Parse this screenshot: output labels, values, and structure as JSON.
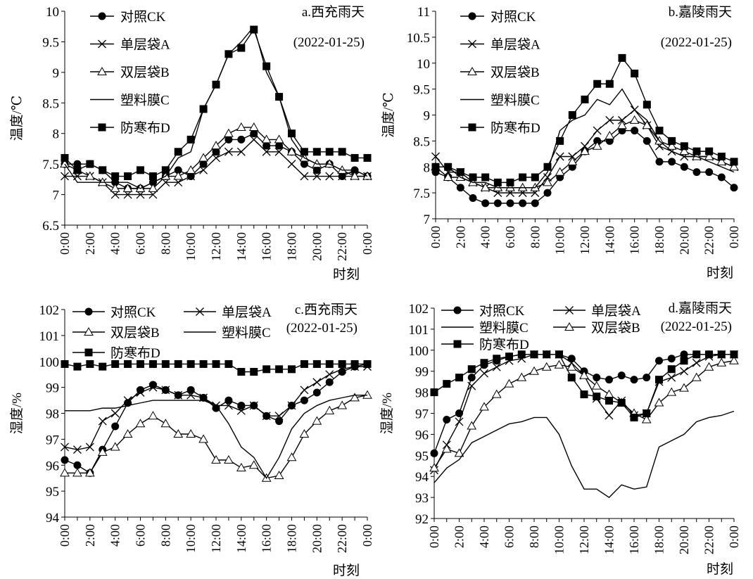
{
  "chart_data": [
    {
      "type": "line",
      "title": "a.西充雨天",
      "subtitle": "(2022-01-25)",
      "xlabel": "时刻",
      "ylabel": "温度/℃",
      "ylim": [
        6.5,
        10
      ],
      "y_ticks": [
        "6.5",
        "7",
        "7.5",
        "8",
        "8.5",
        "9",
        "9.5",
        "10"
      ],
      "x_ticks": [
        "0:00",
        "2:00",
        "4:00",
        "6:00",
        "8:00",
        "10:00",
        "12:00",
        "14:00",
        "16:00",
        "18:00",
        "20:00",
        "22:00",
        "0:00"
      ],
      "x_hours": [
        0,
        2,
        4,
        6,
        8,
        10,
        12,
        14,
        16,
        18,
        20,
        22,
        24
      ],
      "x": [
        0,
        1,
        2,
        3,
        4,
        5,
        6,
        7,
        8,
        9,
        10,
        11,
        12,
        13,
        14,
        15,
        16,
        17,
        18,
        19,
        20,
        21,
        22,
        23,
        24
      ],
      "grid": false,
      "legend_position": "top-left",
      "series": [
        {
          "name": "对照CK",
          "marker": "circle",
          "values": [
            7.5,
            7.5,
            7.5,
            7.4,
            7.2,
            7.1,
            7.1,
            7.2,
            7.3,
            7.4,
            7.3,
            7.5,
            7.7,
            7.9,
            7.9,
            8.0,
            7.8,
            7.8,
            7.7,
            7.5,
            7.4,
            7.5,
            7.3,
            7.4,
            7.3
          ]
        },
        {
          "name": "单层袋A",
          "marker": "cross",
          "values": [
            7.3,
            7.3,
            7.3,
            7.2,
            7.0,
            7.0,
            7.0,
            7.0,
            7.2,
            7.2,
            7.3,
            7.4,
            7.6,
            7.7,
            7.7,
            7.9,
            7.7,
            7.7,
            7.5,
            7.3,
            7.3,
            7.3,
            7.3,
            7.3,
            7.3
          ]
        },
        {
          "name": "双层袋B",
          "marker": "triangle",
          "values": [
            7.5,
            7.4,
            7.3,
            7.2,
            7.1,
            7.1,
            7.1,
            7.1,
            7.3,
            7.3,
            7.4,
            7.6,
            7.8,
            8.0,
            8.1,
            8.1,
            7.9,
            7.9,
            7.7,
            7.6,
            7.5,
            7.5,
            7.4,
            7.3,
            7.3
          ]
        },
        {
          "name": "塑料膜C",
          "marker": "none",
          "values": [
            7.5,
            7.2,
            7.2,
            7.2,
            7.2,
            7.2,
            7.1,
            7.2,
            7.3,
            7.6,
            7.7,
            8.4,
            8.8,
            9.3,
            9.5,
            9.75,
            9.0,
            8.6,
            7.9,
            7.6,
            7.5,
            7.5,
            7.4,
            7.4,
            7.3
          ]
        },
        {
          "name": "防寒布D",
          "marker": "square",
          "values": [
            7.6,
            7.4,
            7.5,
            7.4,
            7.3,
            7.3,
            7.4,
            7.3,
            7.4,
            7.7,
            7.9,
            8.4,
            8.8,
            9.3,
            9.4,
            9.7,
            9.1,
            8.6,
            8.0,
            7.7,
            7.7,
            7.7,
            7.7,
            7.6,
            7.6
          ]
        }
      ]
    },
    {
      "type": "line",
      "title": "b.嘉陵雨天",
      "subtitle": "(2022-01-25)",
      "xlabel": "时刻",
      "ylabel": "温度/℃",
      "ylim": [
        7,
        11
      ],
      "y_ticks": [
        "7",
        "7.5",
        "8",
        "8.5",
        "9",
        "9.5",
        "10",
        "10.5",
        "11"
      ],
      "x_ticks": [
        "0:00",
        "2:00",
        "4:00",
        "6:00",
        "8:00",
        "10:00",
        "12:00",
        "14:00",
        "16:00",
        "18:00",
        "20:00",
        "22:00",
        "0:00"
      ],
      "x_hours": [
        0,
        2,
        4,
        6,
        8,
        10,
        12,
        14,
        16,
        18,
        20,
        22,
        24
      ],
      "x": [
        0,
        1,
        2,
        3,
        4,
        5,
        6,
        7,
        8,
        9,
        10,
        11,
        12,
        13,
        14,
        15,
        16,
        17,
        18,
        19,
        20,
        21,
        22,
        23,
        24
      ],
      "grid": false,
      "legend_position": "top-left",
      "series": [
        {
          "name": "对照CK",
          "marker": "circle",
          "values": [
            7.9,
            7.8,
            7.6,
            7.4,
            7.3,
            7.3,
            7.3,
            7.3,
            7.3,
            7.5,
            7.8,
            8.0,
            8.3,
            8.5,
            8.5,
            8.7,
            8.7,
            8.5,
            8.1,
            8.1,
            8.0,
            7.9,
            7.9,
            7.8,
            7.6
          ]
        },
        {
          "name": "单层袋A",
          "marker": "cross",
          "values": [
            8.2,
            7.9,
            7.9,
            7.7,
            7.6,
            7.5,
            7.5,
            7.5,
            7.5,
            7.8,
            8.2,
            8.2,
            8.4,
            8.7,
            8.9,
            8.9,
            9.1,
            8.8,
            8.4,
            8.3,
            8.2,
            8.2,
            8.2,
            8.1,
            8.0
          ]
        },
        {
          "name": "双层袋B",
          "marker": "triangle",
          "values": [
            8.0,
            7.8,
            7.8,
            7.7,
            7.6,
            7.6,
            7.6,
            7.6,
            7.6,
            7.7,
            7.9,
            8.1,
            8.3,
            8.4,
            8.6,
            8.8,
            8.9,
            8.8,
            8.5,
            8.4,
            8.3,
            8.2,
            8.2,
            8.1,
            8.0
          ]
        },
        {
          "name": "塑料膜C",
          "marker": "none",
          "values": [
            8.0,
            8.0,
            7.8,
            7.7,
            7.7,
            7.6,
            7.6,
            7.6,
            7.6,
            7.9,
            8.7,
            8.9,
            9.0,
            9.3,
            9.2,
            9.5,
            9.1,
            8.9,
            8.5,
            8.3,
            8.2,
            8.2,
            8.1,
            8.0,
            7.9
          ]
        },
        {
          "name": "防寒布D",
          "marker": "square",
          "values": [
            8.0,
            8.0,
            7.9,
            7.8,
            7.8,
            7.7,
            7.7,
            7.8,
            7.8,
            8.0,
            8.5,
            9.0,
            9.3,
            9.6,
            9.6,
            10.1,
            9.8,
            9.2,
            8.7,
            8.5,
            8.4,
            8.3,
            8.3,
            8.2,
            8.1
          ]
        }
      ]
    },
    {
      "type": "line",
      "title": "c.西充雨天",
      "subtitle": "(2022-01-25)",
      "xlabel": "时刻",
      "ylabel": "湿度/%",
      "ylim": [
        94,
        102
      ],
      "y_ticks": [
        "94",
        "95",
        "96",
        "97",
        "98",
        "99",
        "100",
        "101",
        "102"
      ],
      "x_ticks": [
        "0:00",
        "2:00",
        "4:00",
        "6:00",
        "8:00",
        "10:00",
        "12:00",
        "14:00",
        "16:00",
        "18:00",
        "20:00",
        "22:00",
        "0:00"
      ],
      "x_hours": [
        0,
        2,
        4,
        6,
        8,
        10,
        12,
        14,
        16,
        18,
        20,
        22,
        24
      ],
      "x": [
        0,
        1,
        2,
        3,
        4,
        5,
        6,
        7,
        8,
        9,
        10,
        11,
        12,
        13,
        14,
        15,
        16,
        17,
        18,
        19,
        20,
        21,
        22,
        23,
        24
      ],
      "grid": false,
      "legend_position": "top",
      "series": [
        {
          "name": "对照CK",
          "marker": "circle",
          "values": [
            96.2,
            96.0,
            95.7,
            96.6,
            97.5,
            98.4,
            98.9,
            99.1,
            98.9,
            98.7,
            98.9,
            98.6,
            98.2,
            98.5,
            98.3,
            98.3,
            97.9,
            97.7,
            98.3,
            98.5,
            98.8,
            99.2,
            99.6,
            99.8,
            99.9
          ]
        },
        {
          "name": "单层袋A",
          "marker": "cross",
          "values": [
            96.7,
            96.6,
            96.7,
            97.7,
            98.0,
            98.5,
            98.8,
            99.0,
            98.9,
            98.7,
            98.7,
            98.6,
            98.3,
            98.3,
            98.1,
            98.3,
            97.9,
            97.9,
            98.3,
            98.9,
            99.2,
            99.5,
            99.7,
            99.8,
            99.8
          ]
        },
        {
          "name": "双层袋B",
          "marker": "triangle",
          "values": [
            95.7,
            95.7,
            95.7,
            96.5,
            96.7,
            97.2,
            97.6,
            97.9,
            97.6,
            97.2,
            97.2,
            97.0,
            96.2,
            96.2,
            95.9,
            96.0,
            95.5,
            95.6,
            96.3,
            97.2,
            97.7,
            98.1,
            98.3,
            98.6,
            98.7
          ]
        },
        {
          "name": "塑料膜C",
          "marker": "none",
          "values": [
            98.1,
            98.1,
            98.1,
            98.2,
            98.2,
            98.3,
            98.4,
            98.5,
            98.5,
            98.5,
            98.5,
            98.5,
            98.3,
            97.6,
            96.7,
            96.3,
            95.5,
            96.3,
            97.4,
            98.0,
            98.3,
            98.5,
            98.6,
            98.7,
            98.7
          ]
        },
        {
          "name": "防寒布D",
          "marker": "square",
          "values": [
            99.9,
            99.8,
            99.9,
            99.8,
            99.9,
            99.9,
            99.9,
            99.9,
            99.9,
            99.9,
            99.9,
            99.9,
            99.9,
            99.9,
            99.6,
            99.6,
            99.7,
            99.7,
            99.7,
            99.9,
            99.9,
            99.9,
            99.9,
            99.9,
            99.9
          ]
        }
      ]
    },
    {
      "type": "line",
      "title": "d.嘉陵雨天",
      "subtitle": "(2022-01-25)",
      "xlabel": "时刻",
      "ylabel": "湿度/%",
      "ylim": [
        92,
        102
      ],
      "y_ticks": [
        "92",
        "93",
        "94",
        "95",
        "96",
        "97",
        "98",
        "99",
        "100",
        "101",
        "102"
      ],
      "x_ticks": [
        "0:00",
        "2:00",
        "4:00",
        "6:00",
        "8:00",
        "10:00",
        "12:00",
        "14:00",
        "16:00",
        "18:00",
        "20:00",
        "22:00",
        "0:00"
      ],
      "x_hours": [
        0,
        2,
        4,
        6,
        8,
        10,
        12,
        14,
        16,
        18,
        20,
        22,
        24
      ],
      "x": [
        0,
        1,
        2,
        3,
        4,
        5,
        6,
        7,
        8,
        9,
        10,
        11,
        12,
        13,
        14,
        15,
        16,
        17,
        18,
        19,
        20,
        21,
        22,
        23,
        24
      ],
      "grid": false,
      "legend_position": "top",
      "series": [
        {
          "name": "对照CK",
          "marker": "circle",
          "values": [
            95.1,
            96.7,
            97.0,
            98.7,
            99.3,
            99.5,
            99.7,
            99.8,
            99.8,
            99.8,
            99.8,
            99.6,
            99.0,
            98.7,
            98.6,
            98.8,
            98.6,
            98.7,
            99.5,
            99.6,
            99.8,
            99.8,
            99.8,
            99.8,
            99.8
          ]
        },
        {
          "name": "单层袋A",
          "marker": "cross",
          "values": [
            94.3,
            95.5,
            96.6,
            98.3,
            98.9,
            99.2,
            99.5,
            99.6,
            99.8,
            99.8,
            99.8,
            99.4,
            98.8,
            97.7,
            96.9,
            97.6,
            96.9,
            97.0,
            98.5,
            98.7,
            99.0,
            99.4,
            99.7,
            99.8,
            99.8
          ]
        },
        {
          "name": "双层袋B",
          "marker": "triangle",
          "values": [
            94.4,
            95.3,
            95.1,
            96.4,
            97.3,
            97.9,
            98.4,
            98.7,
            99.0,
            99.2,
            99.3,
            99.2,
            98.8,
            98.3,
            97.9,
            97.5,
            97.0,
            96.7,
            97.5,
            98.0,
            98.2,
            98.7,
            99.2,
            99.4,
            99.5
          ]
        },
        {
          "name": "塑料膜C",
          "marker": "none",
          "values": [
            93.7,
            94.4,
            94.8,
            95.6,
            95.9,
            96.2,
            96.5,
            96.6,
            96.8,
            96.8,
            96.0,
            94.5,
            93.4,
            93.4,
            93.0,
            93.6,
            93.4,
            93.5,
            95.4,
            95.7,
            96.0,
            96.6,
            96.8,
            96.9,
            97.1
          ]
        },
        {
          "name": "防寒布D",
          "marker": "square",
          "values": [
            98.0,
            98.4,
            98.7,
            99.1,
            99.4,
            99.6,
            99.7,
            99.8,
            99.8,
            99.8,
            99.8,
            98.7,
            97.9,
            97.8,
            97.6,
            97.5,
            96.8,
            97.0,
            98.6,
            99.1,
            99.5,
            99.8,
            99.8,
            99.8,
            99.8
          ]
        }
      ]
    }
  ]
}
